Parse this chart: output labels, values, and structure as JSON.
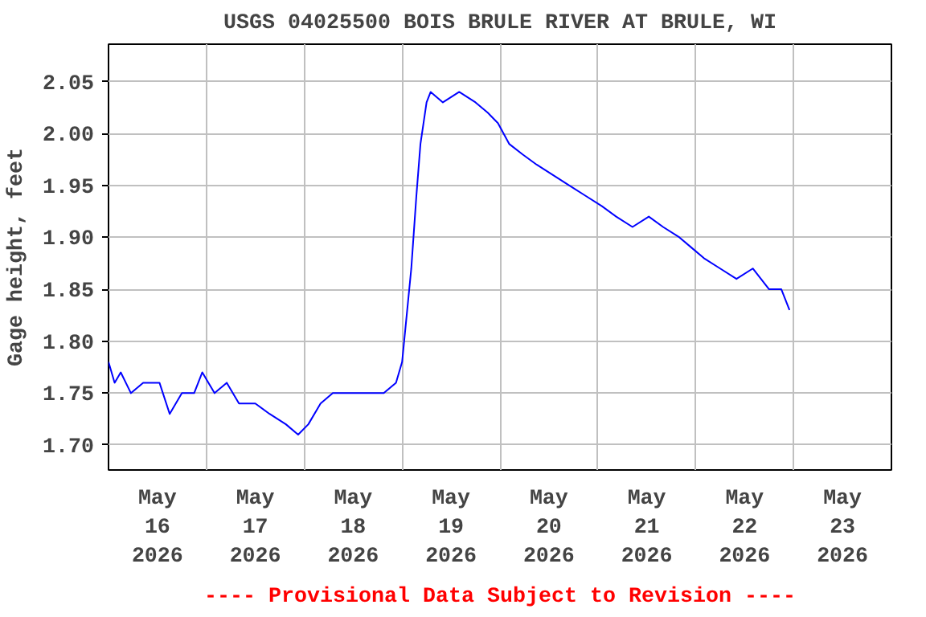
{
  "chart_data": {
    "type": "line",
    "title": "USGS 04025500 BOIS BRULE RIVER AT BRULE, WI",
    "ylabel": "Gage height, feet",
    "annotations": [
      "---- Provisional Data Subject to Revision ----"
    ],
    "x": [
      "2026-05-16T00:00",
      "2026-05-16T01:30",
      "2026-05-16T03:00",
      "2026-05-16T05:30",
      "2026-05-16T08:30",
      "2026-05-16T12:30",
      "2026-05-16T15:00",
      "2026-05-16T18:00",
      "2026-05-16T21:00",
      "2026-05-16T23:00",
      "2026-05-17T02:00",
      "2026-05-17T05:00",
      "2026-05-17T08:00",
      "2026-05-17T12:00",
      "2026-05-17T15:30",
      "2026-05-17T19:30",
      "2026-05-17T22:30",
      "2026-05-18T01:00",
      "2026-05-18T04:00",
      "2026-05-18T07:00",
      "2026-05-18T11:00",
      "2026-05-18T15:00",
      "2026-05-18T19:30",
      "2026-05-18T22:30",
      "2026-05-19T00:00",
      "2026-05-19T01:00",
      "2026-05-19T02:15",
      "2026-05-19T03:30",
      "2026-05-19T04:30",
      "2026-05-19T06:00",
      "2026-05-19T07:00",
      "2026-05-19T10:00",
      "2026-05-19T14:00",
      "2026-05-19T18:00",
      "2026-05-19T21:00",
      "2026-05-19T23:30",
      "2026-05-20T02:15",
      "2026-05-20T05:30",
      "2026-05-20T09:00",
      "2026-05-20T13:00",
      "2026-05-20T17:00",
      "2026-05-20T21:00",
      "2026-05-21T01:00",
      "2026-05-21T04:30",
      "2026-05-21T08:30",
      "2026-05-21T12:30",
      "2026-05-21T16:00",
      "2026-05-21T20:00",
      "2026-05-21T23:00",
      "2026-05-22T02:00",
      "2026-05-22T06:00",
      "2026-05-22T10:00",
      "2026-05-22T14:00",
      "2026-05-22T18:00",
      "2026-05-22T21:00",
      "2026-05-22T23:00"
    ],
    "series": [
      {
        "color": "#0000ff",
        "values": [
          1.78,
          1.76,
          1.77,
          1.75,
          1.76,
          1.76,
          1.73,
          1.75,
          1.75,
          1.77,
          1.75,
          1.76,
          1.74,
          1.74,
          1.73,
          1.72,
          1.71,
          1.72,
          1.74,
          1.75,
          1.75,
          1.75,
          1.75,
          1.76,
          1.78,
          1.82,
          1.87,
          1.94,
          1.99,
          2.03,
          2.04,
          2.03,
          2.04,
          2.03,
          2.02,
          2.01,
          1.99,
          1.98,
          1.97,
          1.96,
          1.95,
          1.94,
          1.93,
          1.92,
          1.91,
          1.92,
          1.91,
          1.9,
          1.89,
          1.88,
          1.87,
          1.86,
          1.87,
          1.85,
          1.85,
          1.83
        ]
      }
    ],
    "xlim": [
      "2026-05-16T00:00",
      "2026-05-24T00:00"
    ],
    "xticks": [
      {
        "value": "2026-05-16T12:00",
        "label": "May\n16\n2026"
      },
      {
        "value": "2026-05-17T00:00",
        "label": null
      },
      {
        "value": "2026-05-17T12:00",
        "label": "May\n17\n2026"
      },
      {
        "value": "2026-05-18T00:00",
        "label": null
      },
      {
        "value": "2026-05-18T12:00",
        "label": "May\n18\n2026"
      },
      {
        "value": "2026-05-19T00:00",
        "label": null
      },
      {
        "value": "2026-05-19T12:00",
        "label": "May\n19\n2026"
      },
      {
        "value": "2026-05-20T00:00",
        "label": null
      },
      {
        "value": "2026-05-20T12:00",
        "label": "May\n20\n2026"
      },
      {
        "value": "2026-05-21T00:00",
        "label": null
      },
      {
        "value": "2026-05-21T12:00",
        "label": "May\n21\n2026"
      },
      {
        "value": "2026-05-22T00:00",
        "label": null
      },
      {
        "value": "2026-05-22T12:00",
        "label": "May\n22\n2026"
      },
      {
        "value": "2026-05-23T00:00",
        "label": null
      },
      {
        "value": "2026-05-23T12:00",
        "label": "May\n23\n2026"
      }
    ],
    "ylim": [
      1.676,
      2.086
    ],
    "yticks": [
      {
        "value": 1.7,
        "label": "1.70"
      },
      {
        "value": 1.75,
        "label": "1.75"
      },
      {
        "value": 1.8,
        "label": "1.80"
      },
      {
        "value": 1.85,
        "label": "1.85"
      },
      {
        "value": 1.9,
        "label": "1.90"
      },
      {
        "value": 1.95,
        "label": "1.95"
      },
      {
        "value": 2.0,
        "label": "2.00"
      },
      {
        "value": 2.05,
        "label": "2.05"
      }
    ],
    "grid": true
  }
}
